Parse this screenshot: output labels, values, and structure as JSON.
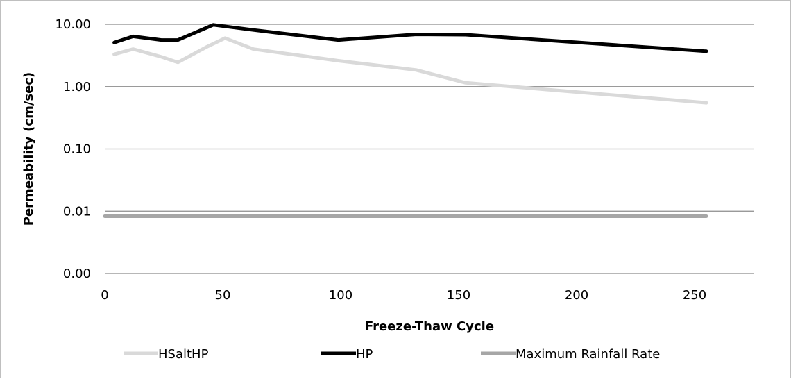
{
  "chart_data": {
    "type": "line",
    "title": "",
    "xlabel": "Freeze-Thaw Cycle",
    "ylabel": "Permeability (cm/sec)",
    "xlim": [
      0,
      275
    ],
    "x_ticks": [
      0,
      50,
      100,
      150,
      200,
      250
    ],
    "x_tick_labels": [
      "0",
      "50",
      "100",
      "150",
      "200",
      "250"
    ],
    "ylim": [
      0.001,
      10
    ],
    "y_scale": "log",
    "y_ticks": [
      0.001,
      0.01,
      0.1,
      1,
      10
    ],
    "y_tick_labels": [
      "0.00",
      "0.01",
      "0.10",
      "1.00",
      "10.00"
    ],
    "grid": "horizontal",
    "legend_position": "bottom",
    "series": [
      {
        "name": "HSaltHP",
        "color": "#d9d9d9",
        "x": [
          4,
          12,
          24,
          31,
          43,
          51,
          63,
          99,
          132,
          153,
          255
        ],
        "y": [
          3.3,
          4.0,
          3.0,
          2.45,
          4.3,
          6.0,
          4.0,
          2.6,
          1.85,
          1.15,
          0.55
        ]
      },
      {
        "name": "HP",
        "color": "#000000",
        "x": [
          4,
          12,
          24,
          31,
          46,
          63,
          99,
          132,
          153,
          255
        ],
        "y": [
          5.1,
          6.4,
          5.6,
          5.6,
          9.8,
          8.1,
          5.6,
          6.9,
          6.8,
          3.7
        ]
      },
      {
        "name": "Maximum Rainfall Rate",
        "color": "#a6a6a6",
        "x": [
          0,
          255
        ],
        "y": [
          0.0083,
          0.0083
        ]
      }
    ]
  }
}
